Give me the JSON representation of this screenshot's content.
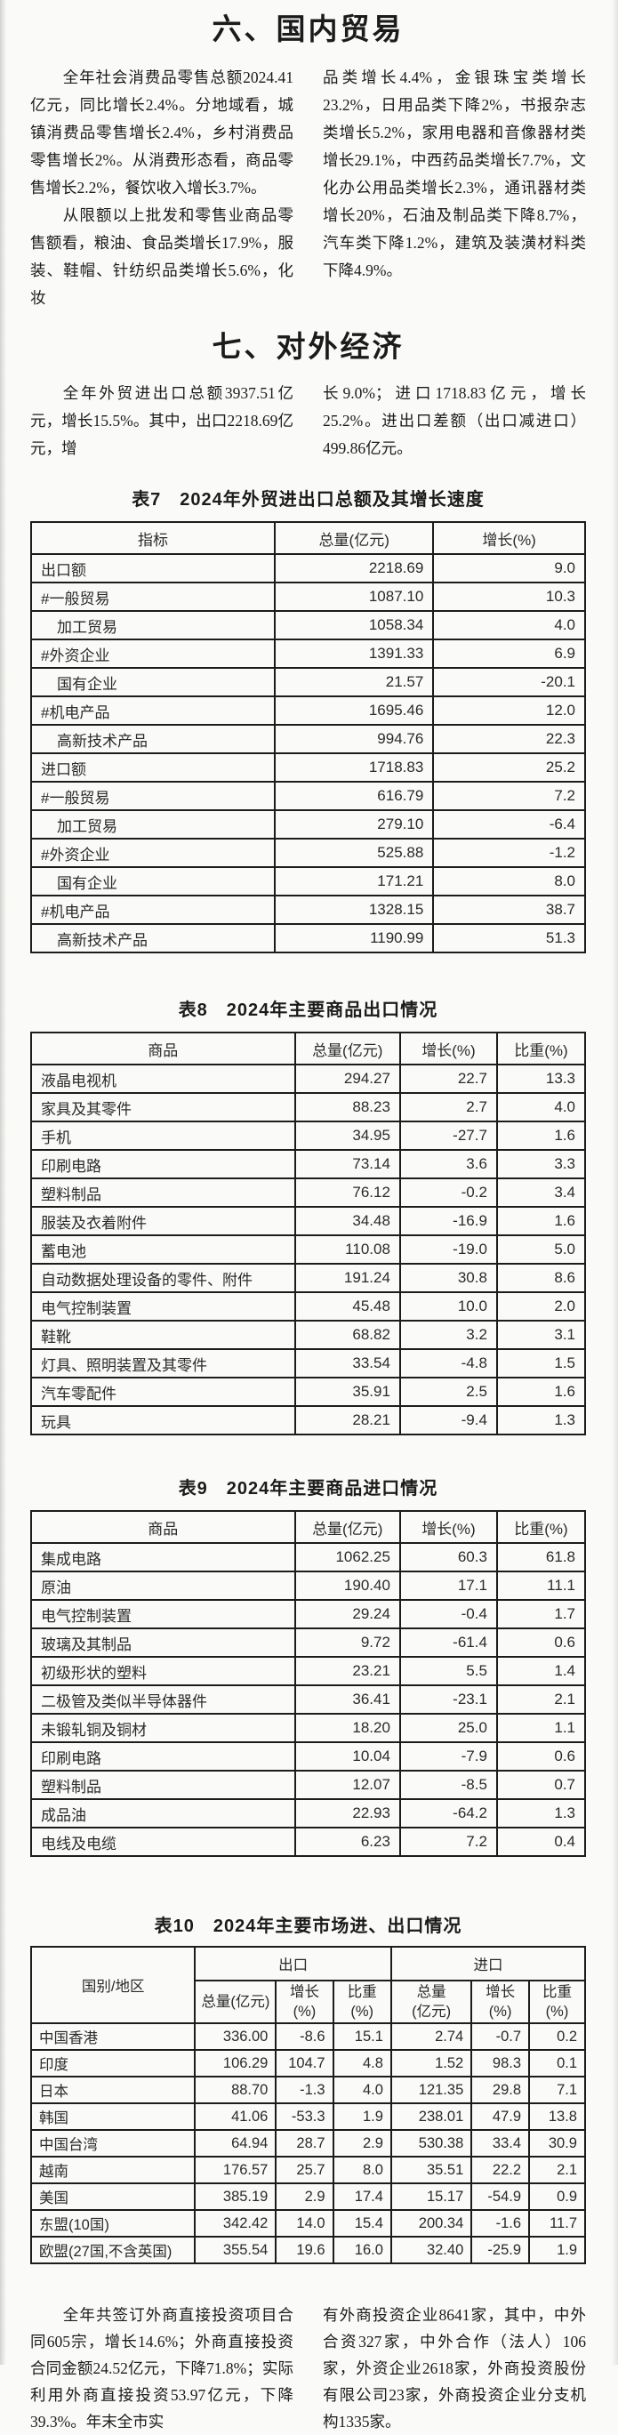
{
  "colors": {
    "paper": "#fafaf8",
    "ink": "#1b1b1b",
    "table_line": "#1c1c1c"
  },
  "section_domestic": {
    "heading": "六、国内贸易",
    "left_p1": "全年社会消费品零售总额2024.41亿元，同比增长2.4%。分地域看，城镇消费品零售增长2.4%，乡村消费品零售增长2%。从消费形态看，商品零售增长2.2%，餐饮收入增长3.7%。",
    "left_p2": "从限额以上批发和零售业商品零售额看，粮油、食品类增长17.9%，服装、鞋帽、针纺织品类增长5.6%，化妆",
    "right_p1": "品类增长4.4%，金银珠宝类增长23.2%，日用品类下降2%，书报杂志类增长5.2%，家用电器和音像器材类增长29.1%，中西药品类增长7.7%，文化办公用品类增长2.3%，通讯器材类增长20%，石油及制品类下降8.7%，汽车类下降1.2%，建筑及装潢材料类下降4.9%。"
  },
  "section_foreign": {
    "heading": "七、对外经济",
    "left_p1": "全年外贸进出口总额3937.51亿元，增长15.5%。其中，出口2218.69亿元，增",
    "right_p1": "长9.0%；进口1718.83亿元，增长25.2%。进出口差额（出口减进口）499.86亿元。"
  },
  "table7": {
    "title": "表7　2024年外贸进出口总额及其增长速度",
    "headers": [
      "指标",
      "总量(亿元)",
      "增长(%)"
    ],
    "rows": [
      {
        "label": "出口额",
        "indent": 0,
        "total": "2218.69",
        "growth": "9.0"
      },
      {
        "label": "#一般贸易",
        "indent": 0,
        "total": "1087.10",
        "growth": "10.3"
      },
      {
        "label": "加工贸易",
        "indent": 1,
        "total": "1058.34",
        "growth": "4.0"
      },
      {
        "label": "#外资企业",
        "indent": 0,
        "total": "1391.33",
        "growth": "6.9"
      },
      {
        "label": "国有企业",
        "indent": 1,
        "total": "21.57",
        "growth": "-20.1"
      },
      {
        "label": "#机电产品",
        "indent": 0,
        "total": "1695.46",
        "growth": "12.0"
      },
      {
        "label": "高新技术产品",
        "indent": 1,
        "total": "994.76",
        "growth": "22.3"
      },
      {
        "label": "进口额",
        "indent": 0,
        "total": "1718.83",
        "growth": "25.2"
      },
      {
        "label": "#一般贸易",
        "indent": 0,
        "total": "616.79",
        "growth": "7.2"
      },
      {
        "label": "加工贸易",
        "indent": 1,
        "total": "279.10",
        "growth": "-6.4"
      },
      {
        "label": "#外资企业",
        "indent": 0,
        "total": "525.88",
        "growth": "-1.2"
      },
      {
        "label": "国有企业",
        "indent": 1,
        "total": "171.21",
        "growth": "8.0"
      },
      {
        "label": "#机电产品",
        "indent": 0,
        "total": "1328.15",
        "growth": "38.7"
      },
      {
        "label": "高新技术产品",
        "indent": 1,
        "total": "1190.99",
        "growth": "51.3"
      }
    ]
  },
  "table8": {
    "title": "表8　2024年主要商品出口情况",
    "headers": [
      "商品",
      "总量(亿元)",
      "增长(%)",
      "比重(%)"
    ],
    "rows": [
      {
        "label": "液晶电视机",
        "total": "294.27",
        "growth": "22.7",
        "share": "13.3"
      },
      {
        "label": "家具及其零件",
        "total": "88.23",
        "growth": "2.7",
        "share": "4.0"
      },
      {
        "label": "手机",
        "total": "34.95",
        "growth": "-27.7",
        "share": "1.6"
      },
      {
        "label": "印刷电路",
        "total": "73.14",
        "growth": "3.6",
        "share": "3.3"
      },
      {
        "label": "塑料制品",
        "total": "76.12",
        "growth": "-0.2",
        "share": "3.4"
      },
      {
        "label": "服装及衣着附件",
        "total": "34.48",
        "growth": "-16.9",
        "share": "1.6"
      },
      {
        "label": "蓄电池",
        "total": "110.08",
        "growth": "-19.0",
        "share": "5.0"
      },
      {
        "label": "自动数据处理设备的零件、附件",
        "total": "191.24",
        "growth": "30.8",
        "share": "8.6"
      },
      {
        "label": "电气控制装置",
        "total": "45.48",
        "growth": "10.0",
        "share": "2.0"
      },
      {
        "label": "鞋靴",
        "total": "68.82",
        "growth": "3.2",
        "share": "3.1"
      },
      {
        "label": "灯具、照明装置及其零件",
        "total": "33.54",
        "growth": "-4.8",
        "share": "1.5"
      },
      {
        "label": "汽车零配件",
        "total": "35.91",
        "growth": "2.5",
        "share": "1.6"
      },
      {
        "label": "玩具",
        "total": "28.21",
        "growth": "-9.4",
        "share": "1.3"
      }
    ]
  },
  "table9": {
    "title": "表9　2024年主要商品进口情况",
    "headers": [
      "商品",
      "总量(亿元)",
      "增长(%)",
      "比重(%)"
    ],
    "rows": [
      {
        "label": "集成电路",
        "total": "1062.25",
        "growth": "60.3",
        "share": "61.8"
      },
      {
        "label": "原油",
        "total": "190.40",
        "growth": "17.1",
        "share": "11.1"
      },
      {
        "label": "电气控制装置",
        "total": "29.24",
        "growth": "-0.4",
        "share": "1.7"
      },
      {
        "label": "玻璃及其制品",
        "total": "9.72",
        "growth": "-61.4",
        "share": "0.6"
      },
      {
        "label": "初级形状的塑料",
        "total": "23.21",
        "growth": "5.5",
        "share": "1.4"
      },
      {
        "label": "二极管及类似半导体器件",
        "total": "36.41",
        "growth": "-23.1",
        "share": "2.1"
      },
      {
        "label": "未锻轧铜及铜材",
        "total": "18.20",
        "growth": "25.0",
        "share": "1.1"
      },
      {
        "label": "印刷电路",
        "total": "10.04",
        "growth": "-7.9",
        "share": "0.6"
      },
      {
        "label": "塑料制品",
        "total": "12.07",
        "growth": "-8.5",
        "share": "0.7"
      },
      {
        "label": "成品油",
        "total": "22.93",
        "growth": "-64.2",
        "share": "1.3"
      },
      {
        "label": "电线及电缆",
        "total": "6.23",
        "growth": "7.2",
        "share": "0.4"
      }
    ]
  },
  "table10": {
    "title": "表10　2024年主要市场进、出口情况",
    "col_header": "国别/地区",
    "group_headers": [
      "出口",
      "进口"
    ],
    "sub_headers": [
      [
        "总量(亿元)"
      ],
      [
        "增长",
        "(%)"
      ],
      [
        "比重",
        "(%)"
      ],
      [
        "总量",
        "(亿元)"
      ],
      [
        "增长",
        "(%)"
      ],
      [
        "比重",
        "(%)"
      ]
    ],
    "rows": [
      {
        "label": "中国香港",
        "values": [
          "336.00",
          "-8.6",
          "15.1",
          "2.74",
          "-0.7",
          "0.2"
        ]
      },
      {
        "label": "印度",
        "values": [
          "106.29",
          "104.7",
          "4.8",
          "1.52",
          "98.3",
          "0.1"
        ]
      },
      {
        "label": "日本",
        "values": [
          "88.70",
          "-1.3",
          "4.0",
          "121.35",
          "29.8",
          "7.1"
        ]
      },
      {
        "label": "韩国",
        "values": [
          "41.06",
          "-53.3",
          "1.9",
          "238.01",
          "47.9",
          "13.8"
        ]
      },
      {
        "label": "中国台湾",
        "values": [
          "64.94",
          "28.7",
          "2.9",
          "530.38",
          "33.4",
          "30.9"
        ]
      },
      {
        "label": "越南",
        "values": [
          "176.57",
          "25.7",
          "8.0",
          "35.51",
          "22.2",
          "2.1"
        ]
      },
      {
        "label": "美国",
        "values": [
          "385.19",
          "2.9",
          "17.4",
          "15.17",
          "-54.9",
          "0.9"
        ]
      },
      {
        "label": "东盟(10国)",
        "values": [
          "342.42",
          "14.0",
          "15.4",
          "200.34",
          "-1.6",
          "11.7"
        ]
      },
      {
        "label": "欧盟(27国,不含英国)",
        "values": [
          "355.54",
          "19.6",
          "16.0",
          "32.40",
          "-25.9",
          "1.9"
        ]
      }
    ]
  },
  "closing": {
    "left_p1": "全年共签订外商直接投资项目合同605宗，增长14.6%；外商直接投资合同金额24.52亿元，下降71.8%；实际利用外商直接投资53.97亿元，下降39.3%。年末全市实",
    "right_p1": "有外商投资企业8641家，其中，中外合资327家，中外合作（法人）106家，外资企业2618家，外商投资股份有限公司23家，外商投资企业分支机构1335家。"
  }
}
